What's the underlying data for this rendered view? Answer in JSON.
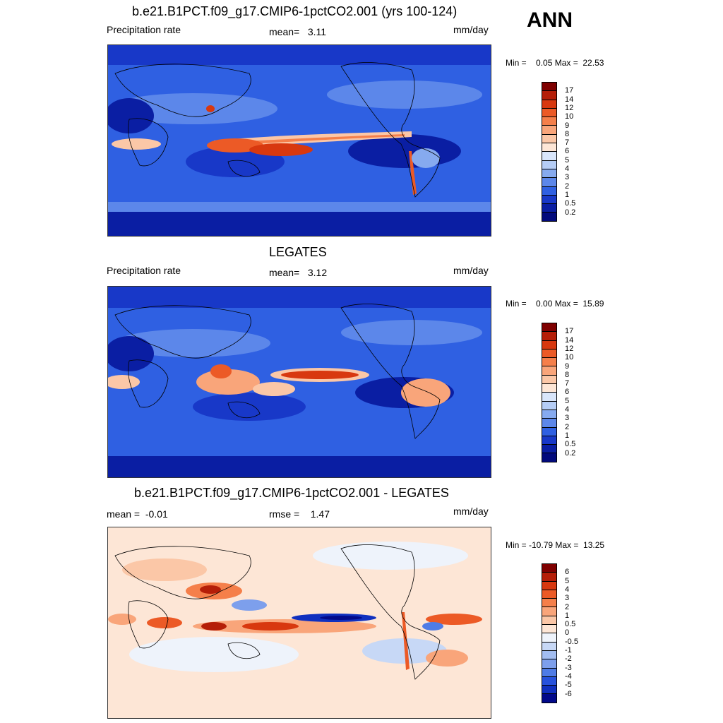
{
  "season": "ANN",
  "panels": [
    {
      "title": "b.e21.B1PCT.f09_g17.CMIP6-1pctCO2.001 (yrs 100-124)",
      "left_label": "Precipitation rate",
      "mid_label": "mean=   3.11",
      "units": "mm/day",
      "minmax": "Min =    0.05 Max =  22.53",
      "scale": "precip"
    },
    {
      "title": "LEGATES",
      "left_label": "Precipitation rate",
      "mid_label": "mean=   3.12",
      "units": "mm/day",
      "minmax": "Min =    0.00 Max =  15.89",
      "scale": "precip"
    },
    {
      "title": "b.e21.B1PCT.f09_g17.CMIP6-1pctCO2.001 - LEGATES",
      "left_label": "mean =  -0.01",
      "mid_label": "rmse =    1.47",
      "units": "mm/day",
      "minmax": "Min = -10.79 Max =  13.25",
      "scale": "diff"
    }
  ],
  "colorbars": {
    "precip": {
      "labels": [
        "17",
        "14",
        "12",
        "10",
        "9",
        "8",
        "7",
        "6",
        "5",
        "4",
        "3",
        "2",
        "1",
        "0.5",
        "0.2"
      ],
      "colors": [
        "#7f0000",
        "#b51e08",
        "#d8380f",
        "#ec5a26",
        "#f57f4a",
        "#f9a57a",
        "#fbc7a7",
        "#fde6d6",
        "#d9e6fb",
        "#b5cdf6",
        "#86aaef",
        "#5c87ea",
        "#2f60e2",
        "#1838c8",
        "#0a1ea3",
        "#020a7c"
      ]
    },
    "diff": {
      "labels": [
        "6",
        "5",
        "4",
        "3",
        "2",
        "1",
        "0.5",
        "0",
        "-0.5",
        "-1",
        "-2",
        "-3",
        "-4",
        "-5",
        "-6"
      ],
      "colors": [
        "#7f0000",
        "#b51e08",
        "#d8380f",
        "#ec5a26",
        "#f57f4a",
        "#f9a57a",
        "#fbc7a7",
        "#fde6d6",
        "#eef3fb",
        "#c7d8f6",
        "#a2bdf1",
        "#7d9fec",
        "#4f7ce6",
        "#2752dc",
        "#1030bf",
        "#02098a"
      ]
    }
  }
}
